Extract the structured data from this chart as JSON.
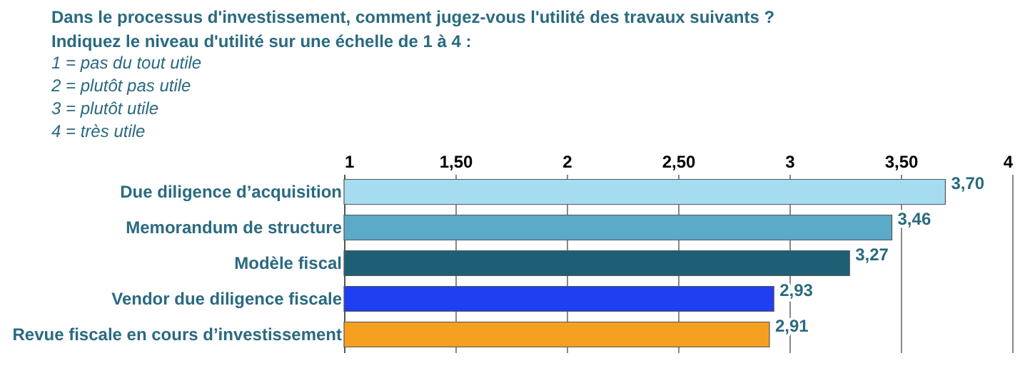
{
  "chart_data": {
    "type": "bar",
    "orientation": "horizontal",
    "title": "Dans le processus d'investissement, comment jugez-vous l'utilité des travaux suivants ?",
    "subtitle": "Indiquez le niveau d'utilité sur une échelle de 1 à 4 :",
    "annotations": [
      "1 = pas du tout utile",
      "2 = plutôt pas utile",
      "3 = plutôt utile",
      "4 = très utile"
    ],
    "categories": [
      "Due diligence d’acquisition",
      "Memorandum de structure",
      "Modèle fiscal",
      "Vendor due diligence fiscale",
      "Revue fiscale en cours d’investissement"
    ],
    "values": [
      3.7,
      3.46,
      3.27,
      2.93,
      2.91
    ],
    "value_labels": [
      "3,70",
      "3,46",
      "3,27",
      "2,93",
      "2,91"
    ],
    "colors": [
      "#a6dcef",
      "#5aaac8",
      "#1e5f75",
      "#1f3ff0",
      "#f5a020"
    ],
    "xlim": [
      1,
      4
    ],
    "xticks": [
      1,
      {
        "value": 1.5,
        "label": "1,50"
      },
      2,
      {
        "value": 2.5,
        "label": "2,50"
      },
      3,
      {
        "value": 3.5,
        "label": "3,50"
      },
      4
    ],
    "grid": "x"
  }
}
